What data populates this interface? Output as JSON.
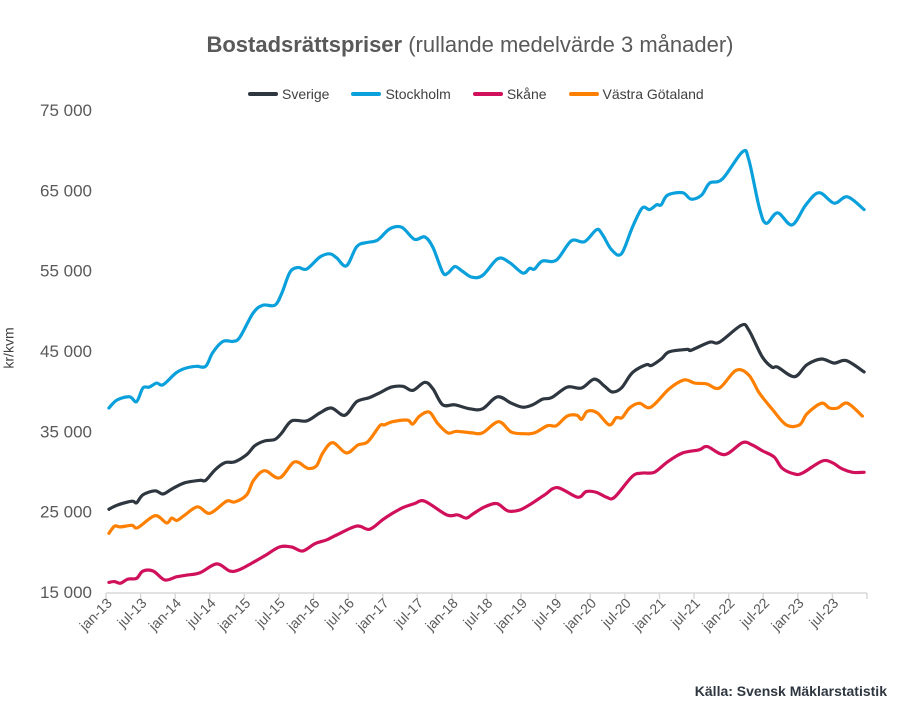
{
  "chart_data": {
    "type": "line",
    "title_bold": "Bostadsrättspriser",
    "title_rest": " (rullande medelvärde 3 månader)",
    "xlabel": "",
    "ylabel": "kr/kvm",
    "ylim": [
      15000,
      75000
    ],
    "yticks": [
      15000,
      25000,
      35000,
      45000,
      55000,
      65000,
      75000
    ],
    "ytick_labels": [
      "15 000",
      "25 000",
      "35 000",
      "45 000",
      "55 000",
      "65 000",
      "75 000"
    ],
    "x_unit": "months since jan-13 (monthly, jan-13 to dec-23)",
    "x_count": 132,
    "xtick_labels": [
      "jan-13",
      "jul-13",
      "jan-14",
      "jul-14",
      "jan-15",
      "jul-15",
      "jan-16",
      "jul-16",
      "jan-17",
      "jul-17",
      "jan-18",
      "jul-18",
      "jan-19",
      "jul-19",
      "jan-20",
      "jul-20",
      "jan-21",
      "jul-21",
      "jan-22",
      "jul-22",
      "jan-23",
      "jul-23"
    ],
    "grid": false,
    "legend_position": "top",
    "source": "Källa: Svensk Mäklarstatistik",
    "series": [
      {
        "name": "Sverige",
        "color": "#2e3640",
        "points": [
          [
            0,
            25300
          ],
          [
            1.4,
            25800
          ],
          [
            4,
            26300
          ],
          [
            4.8,
            26100
          ],
          [
            5.9,
            27100
          ],
          [
            8,
            27600
          ],
          [
            9.4,
            27200
          ],
          [
            11.1,
            27900
          ],
          [
            13.2,
            28600
          ],
          [
            15.8,
            28900
          ],
          [
            16.8,
            28900
          ],
          [
            18.4,
            30200
          ],
          [
            20.1,
            31100
          ],
          [
            21.8,
            31200
          ],
          [
            23.9,
            32100
          ],
          [
            25.3,
            33200
          ],
          [
            27,
            33800
          ],
          [
            28.8,
            34000
          ],
          [
            30,
            34800
          ],
          [
            31.7,
            36300
          ],
          [
            34.3,
            36300
          ],
          [
            36.6,
            37300
          ],
          [
            38.6,
            37900
          ],
          [
            40.9,
            37000
          ],
          [
            43,
            38700
          ],
          [
            45.2,
            39200
          ],
          [
            47,
            39800
          ],
          [
            49,
            40500
          ],
          [
            51,
            40600
          ],
          [
            52.7,
            40100
          ],
          [
            54.8,
            41100
          ],
          [
            56.2,
            40300
          ],
          [
            57.9,
            38300
          ],
          [
            60,
            38300
          ],
          [
            62.6,
            37800
          ],
          [
            64.8,
            37800
          ],
          [
            67.4,
            39300
          ],
          [
            69.8,
            38500
          ],
          [
            71.8,
            38000
          ],
          [
            73.5,
            38300
          ],
          [
            75.2,
            39000
          ],
          [
            76.8,
            39200
          ],
          [
            79.5,
            40500
          ],
          [
            82,
            40400
          ],
          [
            84.2,
            41500
          ],
          [
            86,
            40600
          ],
          [
            87.3,
            39900
          ],
          [
            88.9,
            40400
          ],
          [
            90.8,
            42300
          ],
          [
            93.2,
            43300
          ],
          [
            94.1,
            43200
          ],
          [
            95.8,
            44000
          ],
          [
            97.2,
            44900
          ],
          [
            100.3,
            45200
          ],
          [
            101,
            45100
          ],
          [
            104.2,
            46100
          ],
          [
            105.9,
            46100
          ],
          [
            109.7,
            48200
          ],
          [
            111,
            47600
          ],
          [
            113.3,
            44300
          ],
          [
            115,
            43000
          ],
          [
            116,
            43000
          ],
          [
            118.9,
            41800
          ],
          [
            121.1,
            43300
          ],
          [
            123.6,
            44000
          ],
          [
            125.8,
            43500
          ],
          [
            127.9,
            43800
          ],
          [
            131,
            42400
          ]
        ]
      },
      {
        "name": "Stockholm",
        "color": "#0aa0dc",
        "points": [
          [
            0,
            37900
          ],
          [
            1.4,
            38900
          ],
          [
            3.6,
            39300
          ],
          [
            4.8,
            38700
          ],
          [
            5.9,
            40400
          ],
          [
            7,
            40500
          ],
          [
            8.3,
            41000
          ],
          [
            9.4,
            40800
          ],
          [
            11.7,
            42300
          ],
          [
            13.5,
            42900
          ],
          [
            15.2,
            43100
          ],
          [
            16.8,
            43100
          ],
          [
            18,
            44800
          ],
          [
            19.8,
            46200
          ],
          [
            21.5,
            46200
          ],
          [
            22.7,
            46700
          ],
          [
            25,
            49700
          ],
          [
            26.7,
            50700
          ],
          [
            28.8,
            50700
          ],
          [
            30,
            52200
          ],
          [
            31.4,
            54800
          ],
          [
            32.8,
            55400
          ],
          [
            34.3,
            55200
          ],
          [
            36.6,
            56700
          ],
          [
            38.3,
            57100
          ],
          [
            39.5,
            56600
          ],
          [
            41.2,
            55600
          ],
          [
            43,
            58000
          ],
          [
            44.7,
            58500
          ],
          [
            46.6,
            58800
          ],
          [
            48.7,
            60200
          ],
          [
            50.8,
            60400
          ],
          [
            53,
            58900
          ],
          [
            54.8,
            59200
          ],
          [
            56.2,
            57900
          ],
          [
            57.9,
            54800
          ],
          [
            58.8,
            54700
          ],
          [
            60,
            55500
          ],
          [
            61.2,
            55000
          ],
          [
            62.9,
            54200
          ],
          [
            64.8,
            54400
          ],
          [
            67.5,
            56500
          ],
          [
            69.5,
            56000
          ],
          [
            71.8,
            54700
          ],
          [
            73,
            55300
          ],
          [
            73.8,
            55200
          ],
          [
            75.2,
            56200
          ],
          [
            77.6,
            56300
          ],
          [
            80.2,
            58700
          ],
          [
            82.5,
            58600
          ],
          [
            84.6,
            60100
          ],
          [
            85.6,
            59500
          ],
          [
            87.2,
            57600
          ],
          [
            88.9,
            57100
          ],
          [
            90.8,
            60400
          ],
          [
            92.5,
            62800
          ],
          [
            93.8,
            62600
          ],
          [
            95,
            63200
          ],
          [
            95.8,
            63200
          ],
          [
            96.9,
            64400
          ],
          [
            99.5,
            64700
          ],
          [
            101,
            63900
          ],
          [
            102.8,
            64400
          ],
          [
            104.2,
            65900
          ],
          [
            106.4,
            66400
          ],
          [
            109.9,
            69800
          ],
          [
            111,
            68800
          ],
          [
            112.8,
            62900
          ],
          [
            114,
            60900
          ],
          [
            116,
            62200
          ],
          [
            118.5,
            60700
          ],
          [
            120.9,
            63200
          ],
          [
            123.2,
            64700
          ],
          [
            125.8,
            63400
          ],
          [
            128.1,
            64200
          ],
          [
            131,
            62600
          ]
        ]
      },
      {
        "name": "Skåne",
        "color": "#d0105a",
        "points": [
          [
            0,
            16200
          ],
          [
            1,
            16300
          ],
          [
            2,
            16100
          ],
          [
            3.3,
            16600
          ],
          [
            4.8,
            16700
          ],
          [
            5.9,
            17600
          ],
          [
            7.7,
            17600
          ],
          [
            9.7,
            16500
          ],
          [
            11.8,
            16900
          ],
          [
            13.5,
            17100
          ],
          [
            15.8,
            17400
          ],
          [
            18.7,
            18500
          ],
          [
            21,
            17600
          ],
          [
            22.7,
            17800
          ],
          [
            24.8,
            18600
          ],
          [
            27,
            19500
          ],
          [
            29.6,
            20600
          ],
          [
            31.7,
            20600
          ],
          [
            33.6,
            20100
          ],
          [
            35.7,
            21000
          ],
          [
            37.8,
            21500
          ],
          [
            39.5,
            22100
          ],
          [
            43,
            23200
          ],
          [
            45.2,
            22800
          ],
          [
            47.5,
            24000
          ],
          [
            49.2,
            24800
          ],
          [
            51,
            25500
          ],
          [
            53,
            26000
          ],
          [
            54.8,
            26300
          ],
          [
            58.6,
            24600
          ],
          [
            60.5,
            24600
          ],
          [
            62,
            24200
          ],
          [
            63.1,
            24700
          ],
          [
            65.2,
            25600
          ],
          [
            67.3,
            26000
          ],
          [
            69.2,
            25100
          ],
          [
            71.2,
            25200
          ],
          [
            73.3,
            26000
          ],
          [
            75.6,
            27100
          ],
          [
            77.8,
            28000
          ],
          [
            81.3,
            26800
          ],
          [
            82.8,
            27500
          ],
          [
            84.6,
            27400
          ],
          [
            86.3,
            26800
          ],
          [
            87.7,
            26800
          ],
          [
            90.8,
            29400
          ],
          [
            92.5,
            29800
          ],
          [
            94.6,
            29900
          ],
          [
            96.9,
            31200
          ],
          [
            99.5,
            32300
          ],
          [
            102.4,
            32700
          ],
          [
            103.8,
            33100
          ],
          [
            106.8,
            32100
          ],
          [
            109.9,
            33600
          ],
          [
            111.6,
            33300
          ],
          [
            113.3,
            32600
          ],
          [
            115.4,
            31800
          ],
          [
            116.8,
            30400
          ],
          [
            118.9,
            29700
          ],
          [
            120.3,
            29800
          ],
          [
            123.7,
            31300
          ],
          [
            125.5,
            31100
          ],
          [
            127,
            30400
          ],
          [
            129,
            29900
          ],
          [
            131,
            29900
          ]
        ]
      },
      {
        "name": "Västra Götaland",
        "color": "#ff8000",
        "points": [
          [
            0,
            22300
          ],
          [
            1,
            23200
          ],
          [
            2,
            23100
          ],
          [
            4,
            23300
          ],
          [
            5,
            23000
          ],
          [
            8,
            24500
          ],
          [
            10,
            23600
          ],
          [
            10.9,
            24200
          ],
          [
            11.8,
            23900
          ],
          [
            13.2,
            24600
          ],
          [
            15.4,
            25600
          ],
          [
            17.5,
            24800
          ],
          [
            20.4,
            26300
          ],
          [
            21.8,
            26200
          ],
          [
            23.9,
            27100
          ],
          [
            25.1,
            28900
          ],
          [
            27,
            30100
          ],
          [
            29.6,
            29200
          ],
          [
            32.2,
            31200
          ],
          [
            34.5,
            30400
          ],
          [
            36,
            30700
          ],
          [
            37.1,
            32300
          ],
          [
            38.8,
            33600
          ],
          [
            41.2,
            32300
          ],
          [
            43.2,
            33300
          ],
          [
            44.9,
            33700
          ],
          [
            47,
            35700
          ],
          [
            47.8,
            35800
          ],
          [
            49.2,
            36200
          ],
          [
            51.8,
            36400
          ],
          [
            52.7,
            35900
          ],
          [
            53.9,
            36900
          ],
          [
            55.6,
            37400
          ],
          [
            57,
            36000
          ],
          [
            58.8,
            34800
          ],
          [
            60.3,
            35000
          ],
          [
            63,
            34800
          ],
          [
            64.8,
            34800
          ],
          [
            67.6,
            36200
          ],
          [
            69.8,
            34900
          ],
          [
            72.1,
            34700
          ],
          [
            73.8,
            34800
          ],
          [
            76.1,
            35700
          ],
          [
            77.6,
            35700
          ],
          [
            79.5,
            36900
          ],
          [
            81.2,
            37000
          ],
          [
            82,
            36500
          ],
          [
            83,
            37500
          ],
          [
            84.7,
            37300
          ],
          [
            86.8,
            35800
          ],
          [
            88,
            36700
          ],
          [
            89,
            36700
          ],
          [
            90.3,
            37900
          ],
          [
            92,
            38500
          ],
          [
            94,
            38000
          ],
          [
            97.2,
            40300
          ],
          [
            99.8,
            41400
          ],
          [
            101.6,
            41000
          ],
          [
            103.7,
            40900
          ],
          [
            105.9,
            40400
          ],
          [
            108.8,
            42600
          ],
          [
            111,
            42000
          ],
          [
            112.8,
            39800
          ],
          [
            115,
            37800
          ],
          [
            117.5,
            35800
          ],
          [
            119.8,
            35800
          ],
          [
            121.1,
            37200
          ],
          [
            123.6,
            38500
          ],
          [
            125,
            37900
          ],
          [
            126.4,
            37900
          ],
          [
            128.1,
            38500
          ],
          [
            130.7,
            36900
          ]
        ]
      }
    ]
  }
}
